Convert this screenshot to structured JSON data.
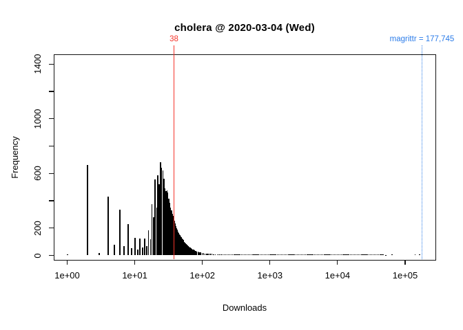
{
  "chart_data": {
    "type": "bar",
    "subtype": "histogram-of-download-counts",
    "title": "cholera @ 2020-03-04 (Wed)",
    "xlabel": "Downloads",
    "ylabel": "Frequency",
    "x_scale": "log10",
    "xlim": [
      1,
      200000
    ],
    "ylim": [
      0,
      1470
    ],
    "grid": "off",
    "bar_color": "#000000",
    "x_ticks": {
      "values": [
        1,
        10,
        100,
        1000,
        10000,
        100000
      ],
      "labels": [
        "1e+00",
        "1e+01",
        "1e+02",
        "1e+03",
        "1e+04",
        "1e+05"
      ]
    },
    "y_ticks": {
      "values": [
        0,
        200,
        400,
        600,
        800,
        1000,
        1200,
        1400
      ],
      "labels": [
        "0",
        "200",
        "",
        "600",
        "",
        "1000",
        "",
        "1400"
      ]
    },
    "bars": [
      [
        1,
        8
      ],
      [
        2,
        663
      ],
      [
        3,
        18
      ],
      [
        4,
        430
      ],
      [
        5,
        80
      ],
      [
        6,
        335
      ],
      [
        7,
        68
      ],
      [
        8,
        230
      ],
      [
        9,
        55
      ],
      [
        10,
        130
      ],
      [
        11,
        42
      ],
      [
        12,
        122
      ],
      [
        13,
        60
      ],
      [
        14,
        122
      ],
      [
        15,
        70
      ],
      [
        16,
        185
      ],
      [
        17,
        120
      ],
      [
        18,
        375
      ],
      [
        19,
        280
      ],
      [
        20,
        555
      ],
      [
        21,
        350
      ],
      [
        22,
        585
      ],
      [
        23,
        520
      ],
      [
        24,
        680
      ],
      [
        25,
        640
      ],
      [
        26,
        620
      ],
      [
        27,
        560
      ],
      [
        28,
        490
      ],
      [
        29,
        470
      ],
      [
        30,
        475
      ],
      [
        31,
        458
      ],
      [
        32,
        415
      ],
      [
        33,
        385
      ],
      [
        34,
        350
      ],
      [
        35,
        330
      ],
      [
        36,
        305
      ],
      [
        37,
        290
      ],
      [
        38,
        278
      ],
      [
        39,
        255
      ],
      [
        40,
        232
      ],
      [
        41,
        215
      ],
      [
        42,
        200
      ],
      [
        43,
        188
      ],
      [
        44,
        176
      ],
      [
        45,
        166
      ],
      [
        46,
        156
      ],
      [
        47,
        147
      ],
      [
        48,
        139
      ],
      [
        49,
        131
      ],
      [
        50,
        124
      ],
      [
        51,
        117
      ],
      [
        52,
        111
      ],
      [
        53,
        105
      ],
      [
        54,
        100
      ],
      [
        55,
        95
      ],
      [
        56,
        90
      ],
      [
        57,
        86
      ],
      [
        58,
        82
      ],
      [
        59,
        78
      ],
      [
        60,
        74
      ],
      [
        62,
        68
      ],
      [
        64,
        62
      ],
      [
        66,
        57
      ],
      [
        68,
        52
      ],
      [
        70,
        48
      ],
      [
        72,
        44
      ],
      [
        74,
        41
      ],
      [
        76,
        38
      ],
      [
        78,
        35
      ],
      [
        80,
        33
      ],
      [
        83,
        30
      ],
      [
        86,
        27
      ],
      [
        89,
        25
      ],
      [
        92,
        23
      ],
      [
        95,
        21
      ],
      [
        100,
        19
      ],
      [
        105,
        17
      ],
      [
        110,
        15
      ],
      [
        116,
        14
      ],
      [
        122,
        13
      ],
      [
        130,
        12
      ],
      [
        138,
        11
      ],
      [
        147,
        10
      ],
      [
        156,
        9
      ],
      [
        166,
        9
      ],
      [
        177,
        8
      ],
      [
        190,
        8
      ]
    ],
    "tail_strip": {
      "from": 200,
      "to": 45000,
      "factor": 1.05,
      "freq": 9
    },
    "sparse_points": [
      [
        47000,
        6
      ],
      [
        52000,
        5
      ],
      [
        64000,
        6
      ],
      [
        140000,
        7
      ],
      [
        163000,
        9
      ]
    ],
    "vlines": [
      {
        "x": 38,
        "label": "38",
        "color": "#f5342a",
        "style": "solid",
        "name": "observed"
      },
      {
        "x": 177745,
        "label": "magrittr = 177,745",
        "color": "#2b7ce9",
        "style": "dotted",
        "name": "max"
      }
    ]
  }
}
